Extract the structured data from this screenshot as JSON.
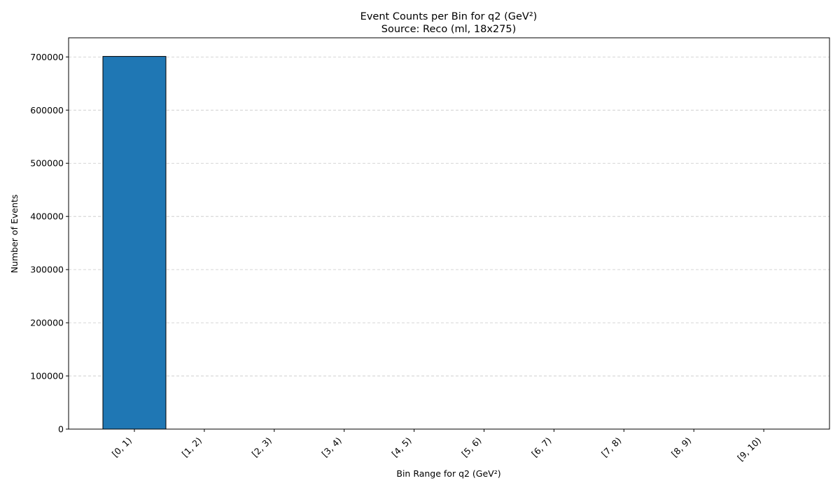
{
  "chart_data": {
    "type": "bar",
    "title": "Event Counts per Bin for q2 (GeV²)",
    "subtitle": "Source: Reco (ml, 18x275)",
    "xlabel": "Bin Range for q2 (GeV²)",
    "ylabel": "Number of Events",
    "categories": [
      "[0, 1)",
      "[1, 2)",
      "[2, 3)",
      "[3, 4)",
      "[4, 5)",
      "[5, 6)",
      "[6, 7)",
      "[7, 8)",
      "[8, 9)",
      "[9, 10)"
    ],
    "values": [
      701000,
      0,
      0,
      0,
      0,
      0,
      0,
      0,
      0,
      0
    ],
    "ylim": [
      0,
      736000
    ],
    "yticks": [
      0,
      100000,
      200000,
      300000,
      400000,
      500000,
      600000,
      700000
    ],
    "grid": "y-dashed",
    "colors": {
      "bar": "#1f77b4",
      "edge": "#000000",
      "grid": "#c8c8c8"
    }
  }
}
